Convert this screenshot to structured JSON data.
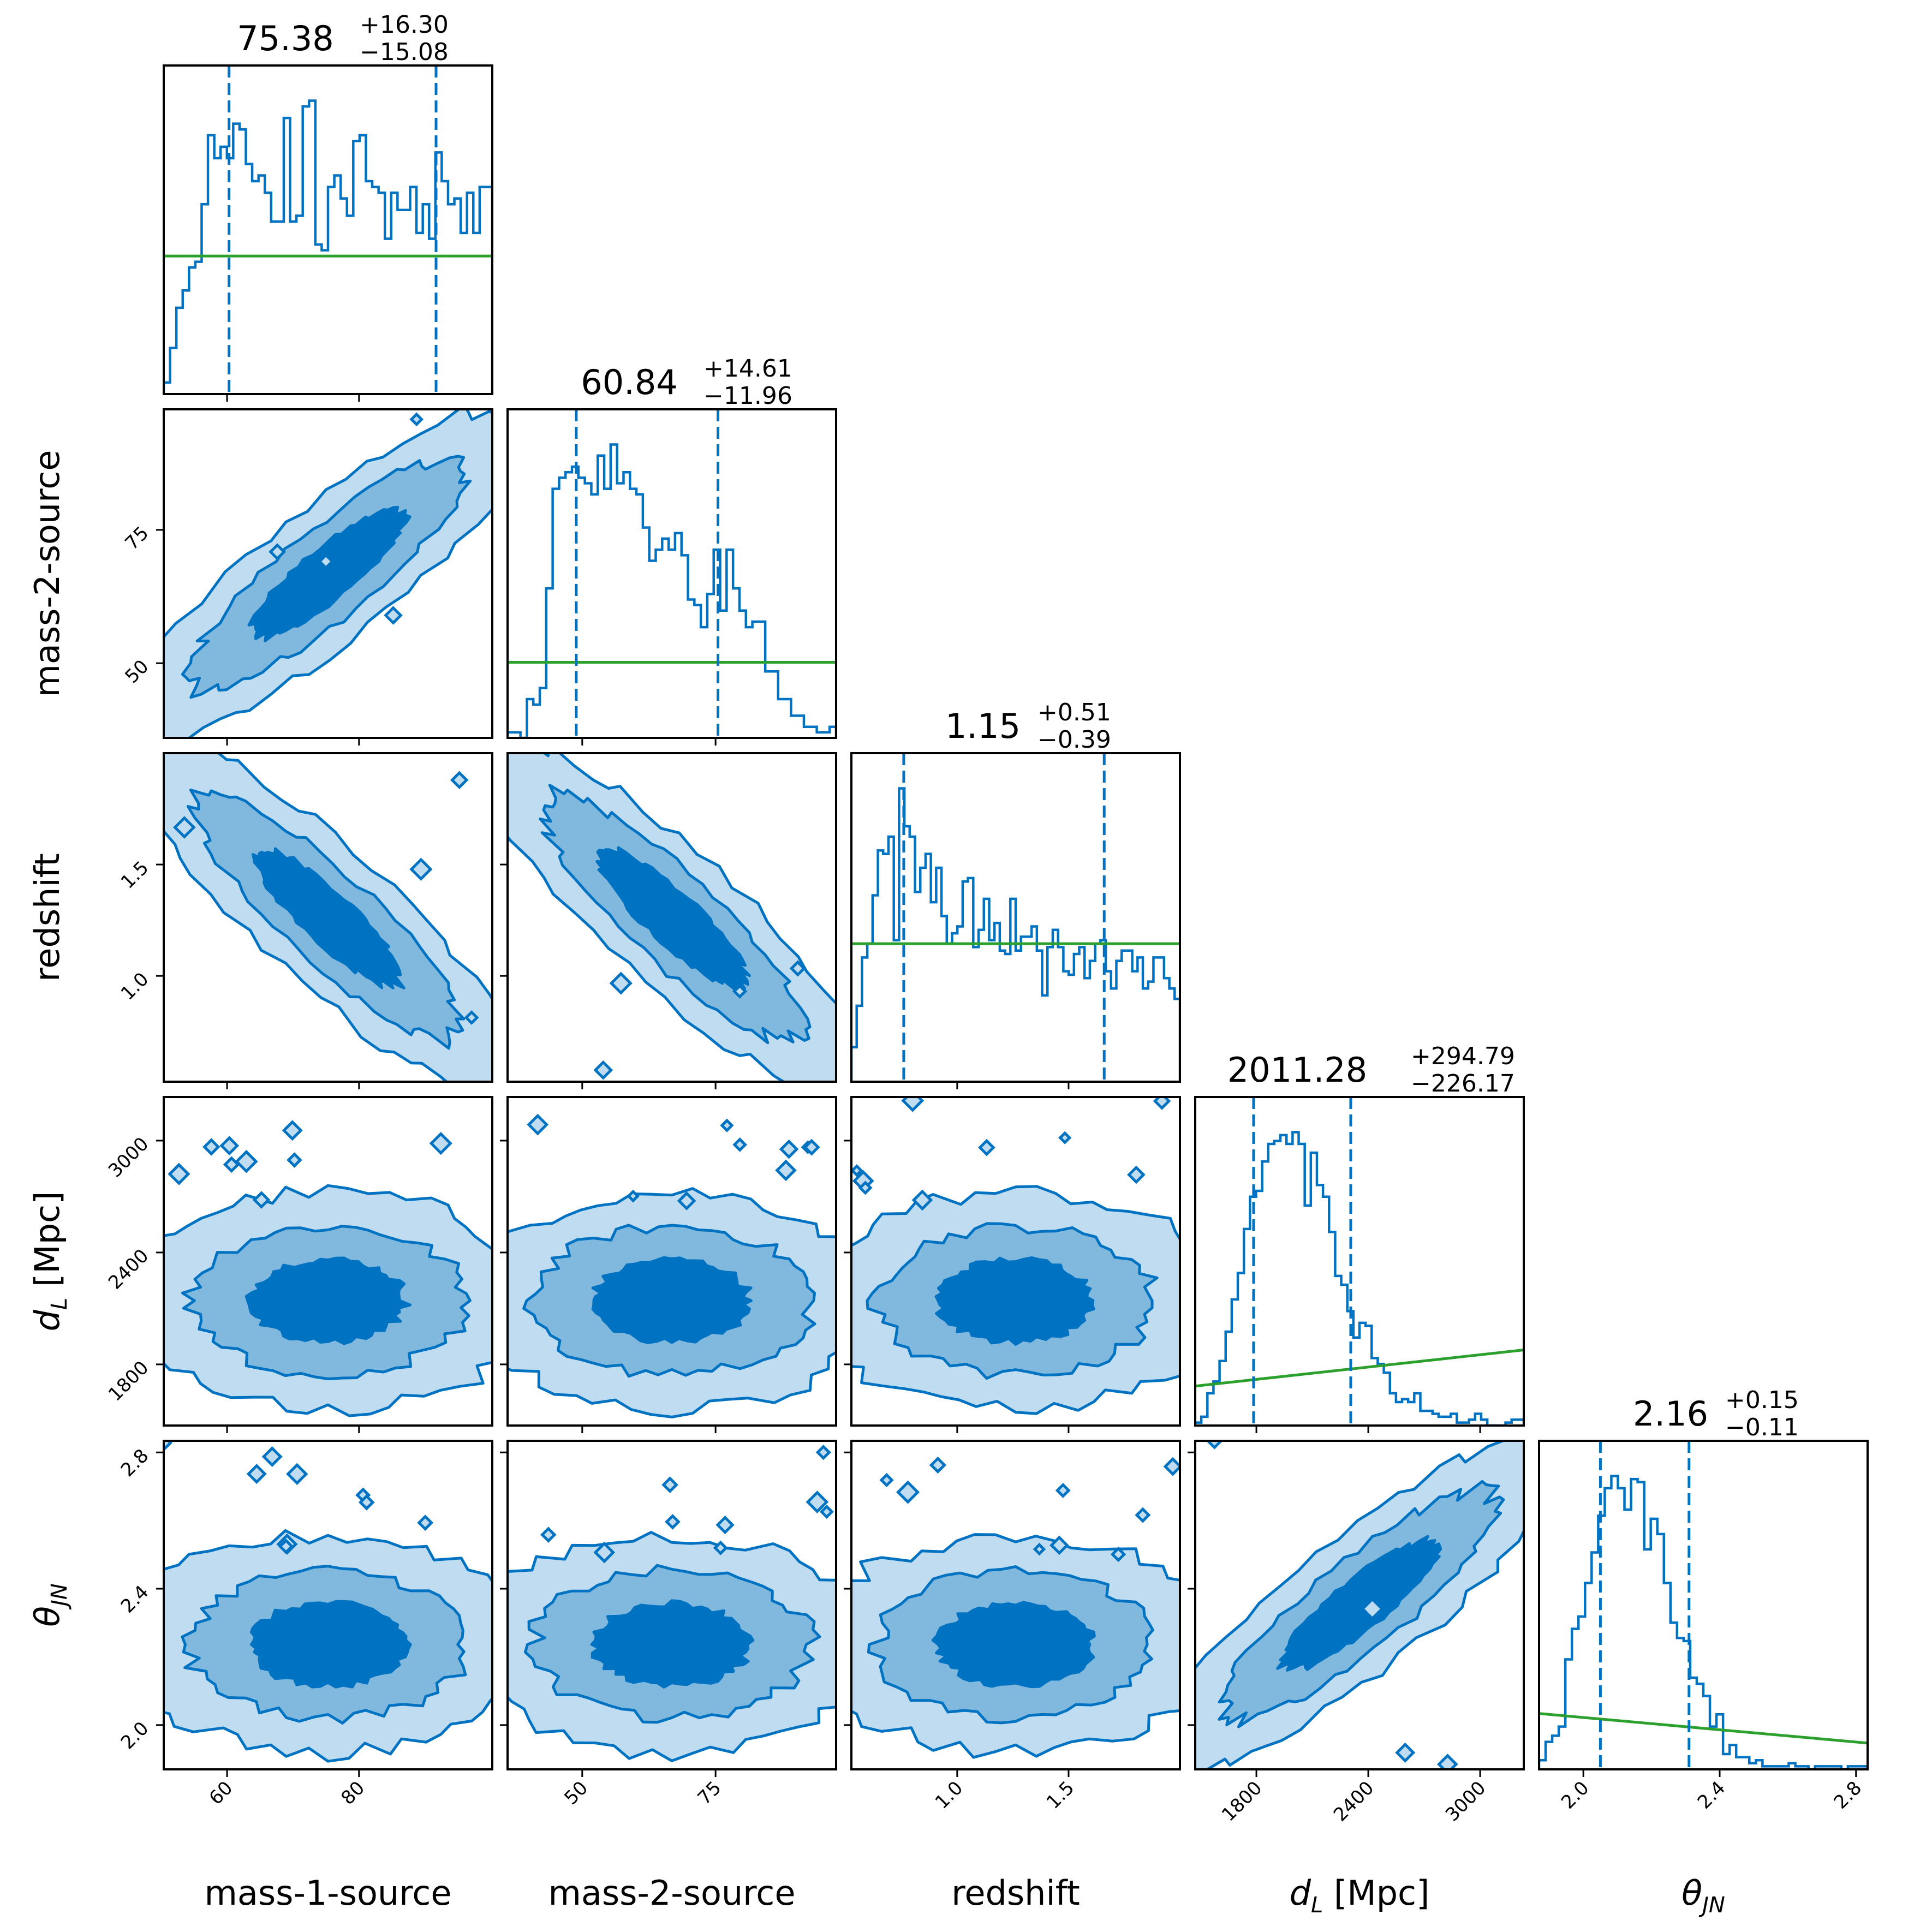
{
  "chart_data": {
    "type": "corner",
    "parameters": [
      {
        "key": "m1",
        "label": "mass-1-source",
        "label_italic": false,
        "range": [
          50.4,
          100.2
        ],
        "ticks": [
          60,
          80
        ],
        "tick_labels": [
          "60",
          "80"
        ],
        "title": {
          "median": "75.38",
          "plus": "+16.30",
          "minus": "−15.08"
        },
        "quantiles": [
          60.3,
          91.68
        ],
        "hist": [
          2,
          8,
          15,
          18,
          22,
          23,
          33,
          45,
          41,
          43,
          41,
          47,
          46,
          40,
          37,
          38,
          35,
          30,
          30,
          48,
          30,
          31,
          50,
          51,
          26,
          25,
          36,
          38,
          34,
          31,
          44,
          45,
          37,
          36,
          35,
          27,
          35,
          32,
          32,
          36,
          28,
          33,
          27,
          42,
          37,
          33,
          34,
          28,
          35,
          28,
          36,
          36
        ]
      },
      {
        "key": "m2",
        "label": "mass-2-source",
        "label_italic": false,
        "range": [
          36.0,
          97.6
        ],
        "ticks": [
          50,
          75
        ],
        "tick_labels": [
          "50",
          "75"
        ],
        "title": {
          "median": "60.84",
          "plus": "+14.61",
          "minus": "−11.96"
        },
        "quantiles": [
          48.88,
          75.45
        ],
        "hist": [
          1,
          1,
          0,
          7,
          6,
          9,
          27,
          45,
          47,
          48,
          49,
          47,
          46,
          44,
          51,
          45,
          53,
          46,
          48,
          45,
          44,
          38,
          32,
          34,
          36,
          34,
          37,
          33,
          25,
          24,
          20,
          26,
          34,
          23,
          34,
          27,
          23,
          20,
          21,
          21,
          12,
          12,
          7,
          7,
          4,
          4,
          2,
          2,
          1,
          1,
          2
        ]
      },
      {
        "key": "z",
        "label": "redshift",
        "label_italic": false,
        "range": [
          0.525,
          2.0
        ],
        "ticks": [
          1.0,
          1.5
        ],
        "tick_labels": [
          "1.0",
          "1.5"
        ],
        "title": {
          "median": "1.15",
          "plus": "+0.51",
          "minus": "−0.39"
        },
        "quantiles": [
          0.76,
          1.66
        ],
        "hist": [
          10,
          22,
          36,
          40,
          54,
          67,
          66,
          71,
          41,
          85,
          74,
          71,
          55,
          62,
          66,
          52,
          62,
          48,
          40,
          43,
          45,
          58,
          59,
          39,
          44,
          53,
          41,
          46,
          38,
          37,
          53,
          38,
          42,
          42,
          45,
          38,
          25,
          39,
          44,
          39,
          32,
          31,
          37,
          39,
          30,
          35,
          40,
          41,
          32,
          27,
          35,
          38,
          38,
          32,
          36,
          27,
          29,
          36,
          36,
          30,
          27,
          24
        ]
      },
      {
        "key": "dL",
        "label_main": "d",
        "label_sub": "L",
        "label_suffix": " [Mpc]",
        "range": [
          1472,
          3234
        ],
        "ticks": [
          1800,
          2400,
          3000
        ],
        "tick_labels": [
          "1800",
          "2400",
          "3000"
        ],
        "title": {
          "median": "2011.28",
          "plus": "+294.79",
          "minus": "−226.17"
        },
        "quantiles": [
          1785.11,
          2306.07
        ],
        "hist": [
          1,
          3,
          11,
          15,
          22,
          32,
          43,
          52,
          67,
          78,
          80,
          90,
          96,
          97,
          99,
          96,
          100,
          96,
          75,
          93,
          82,
          78,
          66,
          51,
          48,
          39,
          30,
          35,
          34,
          23,
          21,
          18,
          11,
          8,
          9,
          8,
          11,
          5,
          5,
          4,
          3,
          3,
          4,
          1,
          1,
          2,
          4,
          2,
          0,
          0,
          0,
          1,
          2,
          2
        ]
      },
      {
        "key": "theta",
        "label_main": "θ",
        "label_sub": "JN",
        "label_suffix": "",
        "range": [
          1.87,
          2.834
        ],
        "ticks": [
          2.0,
          2.4,
          2.8
        ],
        "tick_labels": [
          "2.0",
          "2.4",
          "2.8"
        ],
        "title": {
          "median": "2.16",
          "plus": "+0.15",
          "minus": "−0.11"
        },
        "quantiles": [
          2.05,
          2.31
        ],
        "hist": [
          3,
          9,
          11,
          14,
          36,
          46,
          50,
          61,
          71,
          83,
          92,
          96,
          92,
          85,
          95,
          94,
          72,
          82,
          77,
          61,
          48,
          43,
          42,
          30,
          28,
          24,
          14,
          18,
          5,
          8,
          4,
          4,
          2,
          3,
          1,
          1,
          1,
          1,
          2,
          1,
          1,
          0,
          1,
          1,
          1,
          1,
          0,
          1,
          1,
          1
        ]
      }
    ],
    "priors": {
      "m1": {
        "shape": "flat",
        "level": 0.42
      },
      "m2": {
        "shape": "flat",
        "level": 0.23
      },
      "z": {
        "shape": "flat",
        "level": 0.42
      },
      "dL": {
        "shape": "rising",
        "from": 0.12,
        "to": 0.23
      },
      "theta": {
        "shape": "falling",
        "from": 0.17,
        "to": 0.08
      }
    },
    "contour_levels": [
      "1-sigma",
      "2-sigma",
      "3-sigma"
    ],
    "correlations": {
      "m2|m1": 0.92,
      "z|m1": -0.96,
      "z|m2": -0.95,
      "dL|m1": 0.0,
      "dL|m2": 0.0,
      "dL|z": 0.0,
      "theta|m1": 0.0,
      "theta|m2": 0.0,
      "theta|z": 0.0,
      "theta|dL": 0.93
    },
    "colors": {
      "line": "#0072c2",
      "fill_inner": "#0072c2",
      "fill_mid": "#80b8de",
      "fill_outer": "#c0dcf0",
      "prior": "#2ca02c",
      "frame": "#000000"
    },
    "grid": false,
    "legend": "none"
  }
}
